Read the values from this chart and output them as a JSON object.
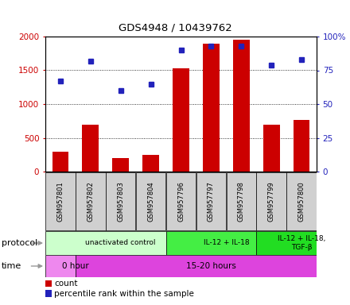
{
  "title": "GDS4948 / 10439762",
  "samples": [
    "GSM957801",
    "GSM957802",
    "GSM957803",
    "GSM957804",
    "GSM957796",
    "GSM957797",
    "GSM957798",
    "GSM957799",
    "GSM957800"
  ],
  "counts": [
    300,
    700,
    200,
    250,
    1530,
    1900,
    1950,
    700,
    760
  ],
  "percentile_ranks": [
    67,
    82,
    60,
    65,
    90,
    93,
    93,
    79,
    83
  ],
  "ylim_left": [
    0,
    2000
  ],
  "ylim_right": [
    0,
    100
  ],
  "yticks_left": [
    0,
    500,
    1000,
    1500,
    2000
  ],
  "ytick_labels_left": [
    "0",
    "500",
    "1000",
    "1500",
    "2000"
  ],
  "yticks_right": [
    0,
    25,
    50,
    75,
    100
  ],
  "ytick_labels_right": [
    "0",
    "25",
    "50",
    "75",
    "100%"
  ],
  "bar_color": "#cc0000",
  "dot_color": "#2222bb",
  "protocol_groups": [
    {
      "label": "unactivated control",
      "start": 0,
      "end": 4,
      "color": "#ccffcc"
    },
    {
      "label": "IL-12 + IL-18",
      "start": 4,
      "end": 7,
      "color": "#44ee44"
    },
    {
      "label": "IL-12 + IL-18,\nTGF-β",
      "start": 7,
      "end": 9,
      "color": "#22dd22"
    }
  ],
  "time_groups": [
    {
      "label": "0 hour",
      "start": 0,
      "end": 1,
      "color": "#ee88ee"
    },
    {
      "label": "15-20 hours",
      "start": 1,
      "end": 9,
      "color": "#dd44dd"
    }
  ],
  "protocol_label": "protocol",
  "time_label": "time",
  "legend_count": "count",
  "legend_pct": "percentile rank within the sample",
  "bg_color": "#ffffff",
  "plot_bg": "#ffffff",
  "sample_box_color": "#d0d0d0",
  "label_arrow_color": "#999999"
}
